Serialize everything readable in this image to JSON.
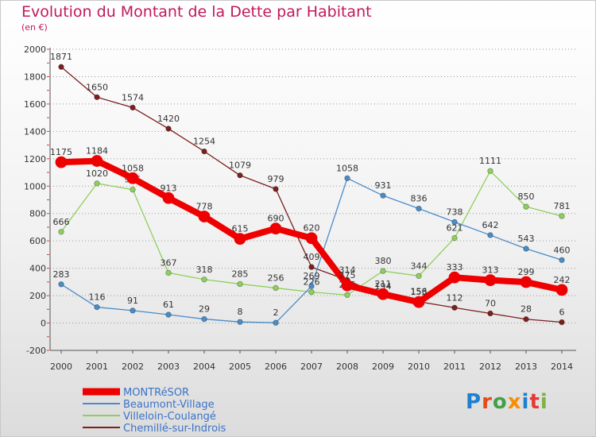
{
  "chart_data": {
    "type": "line",
    "title": "Evolution du Montant de la Dette par Habitant",
    "subtitle": "(en €)",
    "xlabel": "",
    "ylabel": "",
    "ylim": [
      -200,
      2000
    ],
    "y_ticks": [
      "-200",
      "0",
      "200",
      "400",
      "600",
      "800",
      "1000",
      "1200",
      "1400",
      "1600",
      "1800",
      "2000"
    ],
    "categories": [
      "2000",
      "2001",
      "2002",
      "2003",
      "2004",
      "2005",
      "2006",
      "2007",
      "2008",
      "2009",
      "2010",
      "2011",
      "2012",
      "2013",
      "2014"
    ],
    "series": [
      {
        "name": "Chemillé-sur-Indrois",
        "color": "#7b1f1f",
        "values": [
          1871,
          1650,
          1574,
          1420,
          1254,
          1079,
          979,
          409,
          314,
          194,
          156,
          112,
          70,
          28,
          6
        ]
      },
      {
        "name": "Villeloin-Coulangé",
        "color": "#8ed05c",
        "values": [
          666,
          1020,
          975,
          367,
          318,
          285,
          256,
          226,
          205,
          380,
          344,
          621,
          1111,
          850,
          781
        ]
      },
      {
        "name": "Beaumont-Village",
        "color": "#4a8cc7",
        "values": [
          283,
          116,
          91,
          61,
          29,
          8,
          2,
          269,
          1058,
          931,
          836,
          738,
          642,
          543,
          460
        ]
      },
      {
        "name": "MONTRéSOR",
        "color": "#ee0000",
        "values": [
          1175,
          1184,
          1058,
          913,
          778,
          615,
          690,
          620,
          275,
          211,
          153,
          333,
          313,
          299,
          242
        ]
      }
    ],
    "legend_position": "bottom-left"
  },
  "brand": {
    "text": "Proxiti"
  }
}
